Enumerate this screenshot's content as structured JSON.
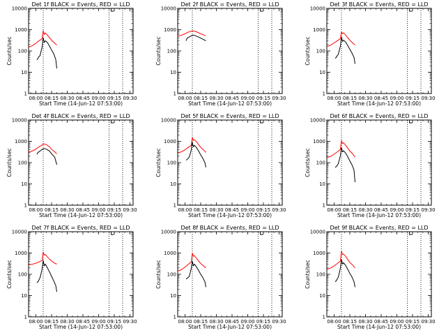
{
  "figure": {
    "background": "#ffffff",
    "axis_color": "#000000"
  },
  "chart_data": [
    {
      "type": "line",
      "title": "Det 1f BLACK = Events, RED = LLD",
      "xlabel": "Start Time (14-Jun-12 07:53:00)",
      "ylabel": "Counts/sec",
      "xticks": [
        "08:00",
        "08:15",
        "08:30",
        "08:45",
        "09:00",
        "09:15",
        "09:30"
      ],
      "yticks": [
        "1",
        "10",
        "100",
        "1000",
        "10000"
      ],
      "xlim": [
        "07:53",
        "09:33"
      ],
      "ylim": [
        1,
        10000
      ],
      "yscale": "log",
      "vlines": [
        "08:07",
        "09:10",
        "09:23"
      ],
      "series": [
        {
          "color": "#ff0000",
          "x": [
            "07:53",
            "07:57",
            "08:00",
            "08:03",
            "08:06",
            "08:07",
            "08:08",
            "08:09",
            "08:11",
            "08:13",
            "08:15",
            "08:18",
            "08:20"
          ],
          "y": [
            150,
            180,
            230,
            300,
            380,
            900,
            600,
            700,
            550,
            420,
            320,
            230,
            190
          ]
        },
        {
          "color": "#000000",
          "x": [
            "08:01",
            "08:02",
            "08:03",
            "08:04",
            "08:05",
            "08:06",
            "08:07",
            "08:08",
            "08:09",
            "08:11",
            "08:13",
            "08:15",
            "08:17",
            "08:19",
            "08:20"
          ],
          "y": [
            38,
            45,
            55,
            60,
            100,
            150,
            420,
            250,
            300,
            250,
            170,
            110,
            75,
            40,
            15
          ]
        }
      ]
    },
    {
      "type": "line",
      "title": "Det 2f BLACK = Events, RED = LLD",
      "xlabel": "Start Time (14-Jun-12 07:53:00)",
      "ylabel": "Counts/sec",
      "xticks": [
        "08:00",
        "08:15",
        "08:30",
        "08:45",
        "09:00",
        "09:15",
        "09:30"
      ],
      "yticks": [
        "1",
        "10",
        "100",
        "1000",
        "10000"
      ],
      "xlim": [
        "07:53",
        "09:33"
      ],
      "ylim": [
        1,
        10000
      ],
      "yscale": "log",
      "vlines": [
        "08:07",
        "09:10",
        "09:23"
      ],
      "series": [
        {
          "color": "#ff0000",
          "x": [
            "07:53",
            "07:57",
            "08:00",
            "08:03",
            "08:06",
            "08:08",
            "08:10",
            "08:13",
            "08:15",
            "08:18",
            "08:20"
          ],
          "y": [
            480,
            560,
            640,
            760,
            850,
            880,
            820,
            720,
            640,
            560,
            520
          ]
        },
        {
          "color": "#000000",
          "x": [
            "08:01",
            "08:02",
            "08:04",
            "08:06",
            "08:08",
            "08:10",
            "08:13",
            "08:15",
            "08:18",
            "08:20"
          ],
          "y": [
            300,
            400,
            450,
            520,
            560,
            520,
            450,
            400,
            340,
            300
          ]
        }
      ]
    },
    {
      "type": "line",
      "title": "Det 3f BLACK = Events, RED = LLD",
      "xlabel": "Start Time (14-Jun-12 07:53:00)",
      "ylabel": "Counts/sec",
      "xticks": [
        "08:00",
        "08:15",
        "08:30",
        "08:45",
        "09:00",
        "09:15",
        "09:30"
      ],
      "yticks": [
        "1",
        "10",
        "100",
        "1000",
        "10000"
      ],
      "xlim": [
        "07:53",
        "09:33"
      ],
      "ylim": [
        1,
        10000
      ],
      "yscale": "log",
      "vlines": [
        "08:07",
        "09:10",
        "09:23"
      ],
      "series": [
        {
          "color": "#ff0000",
          "x": [
            "07:53",
            "07:57",
            "08:00",
            "08:03",
            "08:06",
            "08:07",
            "08:08",
            "08:09",
            "08:11",
            "08:13",
            "08:15",
            "08:18",
            "08:20"
          ],
          "y": [
            160,
            190,
            240,
            300,
            380,
            800,
            650,
            700,
            560,
            420,
            320,
            230,
            190
          ]
        },
        {
          "color": "#000000",
          "x": [
            "08:01",
            "08:02",
            "08:03",
            "08:04",
            "08:05",
            "08:06",
            "08:07",
            "08:08",
            "08:09",
            "08:11",
            "08:13",
            "08:15",
            "08:17",
            "08:19",
            "08:20"
          ],
          "y": [
            45,
            50,
            60,
            70,
            110,
            170,
            450,
            280,
            320,
            260,
            180,
            120,
            80,
            50,
            25
          ]
        }
      ]
    },
    {
      "type": "line",
      "title": "Det 4f BLACK = Events, RED = LLD",
      "xlabel": "Start Time (14-Jun-12 07:53:00)",
      "ylabel": "Counts/sec",
      "xticks": [
        "08:00",
        "08:15",
        "08:30",
        "08:45",
        "09:00",
        "09:15",
        "09:30"
      ],
      "yticks": [
        "1",
        "10",
        "100",
        "1000",
        "10000"
      ],
      "xlim": [
        "07:53",
        "09:33"
      ],
      "ylim": [
        1,
        10000
      ],
      "yscale": "log",
      "vlines": [
        "08:07",
        "09:10",
        "09:23"
      ],
      "series": [
        {
          "color": "#ff0000",
          "x": [
            "07:53",
            "07:57",
            "08:00",
            "08:03",
            "08:06",
            "08:08",
            "08:10",
            "08:13",
            "08:15",
            "08:18",
            "08:20"
          ],
          "y": [
            300,
            360,
            430,
            550,
            680,
            750,
            700,
            560,
            420,
            320,
            260
          ]
        },
        {
          "color": "#000000",
          "x": [
            "08:01",
            "08:02",
            "08:04",
            "08:06",
            "08:08",
            "08:10",
            "08:13",
            "08:15",
            "08:18",
            "08:20"
          ],
          "y": [
            250,
            300,
            350,
            420,
            460,
            430,
            350,
            260,
            180,
            80
          ]
        }
      ]
    },
    {
      "type": "line",
      "title": "Det 5f BLACK = Events, RED = LLD",
      "xlabel": "Start Time (14-Jun-12 07:53:00)",
      "ylabel": "Counts/sec",
      "xticks": [
        "08:00",
        "08:15",
        "08:30",
        "08:45",
        "09:00",
        "09:15",
        "09:30"
      ],
      "yticks": [
        "1",
        "10",
        "100",
        "1000",
        "10000"
      ],
      "xlim": [
        "07:53",
        "09:33"
      ],
      "ylim": [
        1,
        10000
      ],
      "yscale": "log",
      "vlines": [
        "08:07",
        "09:10",
        "09:23"
      ],
      "series": [
        {
          "color": "#ff0000",
          "x": [
            "07:53",
            "07:57",
            "08:00",
            "08:03",
            "08:06",
            "08:07",
            "08:08",
            "08:09",
            "08:11",
            "08:13",
            "08:15",
            "08:18",
            "08:20"
          ],
          "y": [
            280,
            330,
            400,
            520,
            650,
            1500,
            1100,
            1200,
            950,
            700,
            520,
            380,
            300
          ]
        },
        {
          "color": "#000000",
          "x": [
            "08:01",
            "08:02",
            "08:03",
            "08:04",
            "08:05",
            "08:06",
            "08:07",
            "08:08",
            "08:09",
            "08:11",
            "08:13",
            "08:15",
            "08:17",
            "08:19",
            "08:20"
          ],
          "y": [
            130,
            140,
            160,
            180,
            260,
            400,
            900,
            550,
            650,
            500,
            350,
            230,
            160,
            100,
            60
          ]
        }
      ]
    },
    {
      "type": "line",
      "title": "Det 6f BLACK = Events, RED = LLD",
      "xlabel": "Start Time (14-Jun-12 07:53:00)",
      "ylabel": "Counts/sec",
      "xticks": [
        "08:00",
        "08:15",
        "08:30",
        "08:45",
        "09:00",
        "09:15",
        "09:30"
      ],
      "yticks": [
        "1",
        "10",
        "100",
        "1000",
        "10000"
      ],
      "xlim": [
        "07:53",
        "09:33"
      ],
      "ylim": [
        1,
        10000
      ],
      "yscale": "log",
      "vlines": [
        "08:07",
        "09:10",
        "09:23"
      ],
      "series": [
        {
          "color": "#ff0000",
          "x": [
            "07:53",
            "07:57",
            "08:00",
            "08:03",
            "08:06",
            "08:07",
            "08:08",
            "08:09",
            "08:11",
            "08:13",
            "08:15",
            "08:18",
            "08:20"
          ],
          "y": [
            170,
            200,
            250,
            320,
            420,
            1100,
            800,
            850,
            650,
            480,
            350,
            250,
            180
          ]
        },
        {
          "color": "#000000",
          "x": [
            "08:01",
            "08:02",
            "08:03",
            "08:04",
            "08:05",
            "08:06",
            "08:07",
            "08:08",
            "08:09",
            "08:11",
            "08:13",
            "08:15",
            "08:17",
            "08:19",
            "08:20"
          ],
          "y": [
            60,
            65,
            75,
            90,
            140,
            220,
            520,
            320,
            360,
            280,
            190,
            120,
            80,
            45,
            12
          ]
        }
      ]
    },
    {
      "type": "line",
      "title": "Det 7f BLACK = Events, RED = LLD",
      "xlabel": "Start Time (14-Jun-12 07:53:00)",
      "ylabel": "Counts/sec",
      "xticks": [
        "08:00",
        "08:15",
        "08:30",
        "08:45",
        "09:00",
        "09:15",
        "09:30"
      ],
      "yticks": [
        "1",
        "10",
        "100",
        "1000",
        "10000"
      ],
      "xlim": [
        "07:53",
        "09:33"
      ],
      "ylim": [
        1,
        10000
      ],
      "yscale": "log",
      "vlines": [
        "08:07",
        "09:10",
        "09:23"
      ],
      "series": [
        {
          "color": "#ff0000",
          "x": [
            "07:53",
            "07:57",
            "08:00",
            "08:03",
            "08:06",
            "08:07",
            "08:08",
            "08:09",
            "08:11",
            "08:13",
            "08:15",
            "08:18",
            "08:20"
          ],
          "y": [
            280,
            300,
            330,
            380,
            450,
            1100,
            800,
            850,
            650,
            520,
            420,
            330,
            300
          ]
        },
        {
          "color": "#000000",
          "x": [
            "08:01",
            "08:02",
            "08:03",
            "08:04",
            "08:05",
            "08:06",
            "08:07",
            "08:08",
            "08:09",
            "08:11",
            "08:13",
            "08:15",
            "08:17",
            "08:19",
            "08:20"
          ],
          "y": [
            40,
            45,
            55,
            70,
            110,
            180,
            450,
            250,
            300,
            200,
            130,
            80,
            50,
            30,
            15
          ]
        }
      ]
    },
    {
      "type": "line",
      "title": "Det 8f BLACK = Events, RED = LLD",
      "xlabel": "Start Time (14-Jun-12 07:53:00)",
      "ylabel": "Counts/sec",
      "xticks": [
        "08:00",
        "08:15",
        "08:30",
        "08:45",
        "09:00",
        "09:15",
        "09:30"
      ],
      "yticks": [
        "1",
        "10",
        "100",
        "1000",
        "10000"
      ],
      "xlim": [
        "07:53",
        "09:33"
      ],
      "ylim": [
        1,
        10000
      ],
      "yscale": "log",
      "vlines": [
        "08:07",
        "09:10",
        "09:23"
      ],
      "series": [
        {
          "color": "#ff0000",
          "x": [
            "07:53",
            "07:57",
            "08:00",
            "08:03",
            "08:06",
            "08:07",
            "08:08",
            "08:09",
            "08:11",
            "08:13",
            "08:15",
            "08:18",
            "08:20"
          ],
          "y": [
            140,
            170,
            220,
            290,
            380,
            1000,
            700,
            750,
            560,
            420,
            320,
            240,
            200
          ]
        },
        {
          "color": "#000000",
          "x": [
            "08:01",
            "08:02",
            "08:03",
            "08:04",
            "08:05",
            "08:06",
            "08:07",
            "08:08",
            "08:09",
            "08:11",
            "08:13",
            "08:15",
            "08:17",
            "08:19",
            "08:20"
          ],
          "y": [
            60,
            65,
            70,
            80,
            120,
            190,
            420,
            250,
            300,
            220,
            150,
            100,
            70,
            45,
            25
          ]
        }
      ]
    },
    {
      "type": "line",
      "title": "Det 9f BLACK = Events, RED = LLD",
      "xlabel": "Start Time (14-Jun-12 07:53:00)",
      "ylabel": "Counts/sec",
      "xticks": [
        "08:00",
        "08:15",
        "08:30",
        "08:45",
        "09:00",
        "09:15",
        "09:30"
      ],
      "yticks": [
        "1",
        "10",
        "100",
        "1000",
        "10000"
      ],
      "xlim": [
        "07:53",
        "09:33"
      ],
      "ylim": [
        1,
        10000
      ],
      "yscale": "log",
      "vlines": [
        "08:07",
        "09:10",
        "09:23"
      ],
      "series": [
        {
          "color": "#ff0000",
          "x": [
            "07:53",
            "07:57",
            "08:00",
            "08:03",
            "08:06",
            "08:07",
            "08:08",
            "08:09",
            "08:11",
            "08:13",
            "08:15",
            "08:18",
            "08:20"
          ],
          "y": [
            170,
            200,
            250,
            320,
            420,
            1200,
            850,
            900,
            700,
            500,
            360,
            260,
            200
          ]
        },
        {
          "color": "#000000",
          "x": [
            "08:01",
            "08:02",
            "08:03",
            "08:04",
            "08:05",
            "08:06",
            "08:07",
            "08:08",
            "08:09",
            "08:11",
            "08:13",
            "08:15",
            "08:17",
            "08:19",
            "08:20"
          ],
          "y": [
            45,
            50,
            60,
            75,
            120,
            200,
            500,
            300,
            350,
            260,
            170,
            110,
            75,
            45,
            25
          ]
        }
      ]
    }
  ]
}
